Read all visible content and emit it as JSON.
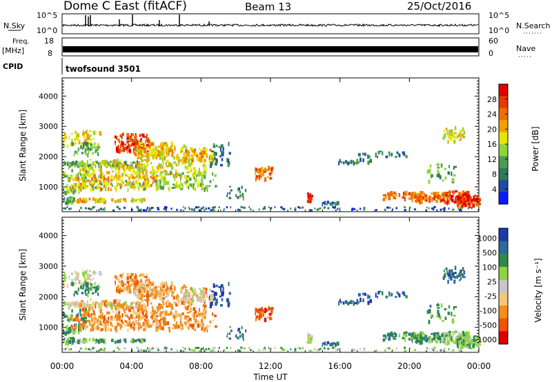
{
  "header": {
    "station": "Dome C East (fitACF)",
    "beam": "Beam 13",
    "date": "25/Oct/2016"
  },
  "status_panels": {
    "nsky_label": "N.Sky",
    "nsky_ticks": [
      "10^5",
      "10^0"
    ],
    "nsearch_label": "N.Search",
    "nsearch_ticks": [
      "10^5",
      "10^0"
    ],
    "freq_label": "Freq.",
    "freq_unit": "[MHz]",
    "freq_ticks": [
      "18",
      "8"
    ],
    "nave_label": "Nave",
    "nave_ticks": [
      "60",
      "0"
    ],
    "cpid_label": "CPID",
    "cpid_value": "twofsound 3501"
  },
  "colors": {
    "power": [
      "#0a1aff",
      "#1e4ca8",
      "#2e7b5a",
      "#4c9c50",
      "#8ed43c",
      "#e6e600",
      "#f0a000",
      "#ef6e00",
      "#e53b00",
      "#e00000"
    ],
    "velocity": [
      "#e00000",
      "#ef5500",
      "#f38f1a",
      "#f2c77a",
      "#c8c8c8",
      "#8ed43c",
      "#2e8b4a",
      "#2f6a9a",
      "#1e3ca8"
    ]
  },
  "chart_data": [
    {
      "type": "heatmap",
      "name": "power",
      "xlabel": "",
      "ylabel": "Slant Range [km]",
      "x_range_hours": [
        0,
        24
      ],
      "ylim": [
        180,
        4600
      ],
      "y_ticks": [
        "1000",
        "2000",
        "3000",
        "4000"
      ],
      "colorbar_label": "Power [dB]",
      "colorbar_ticks": [
        "4",
        "8",
        "12",
        "16",
        "20",
        "24",
        "28"
      ],
      "colorbar_range": [
        0,
        32
      ]
    },
    {
      "type": "heatmap",
      "name": "velocity",
      "xlabel": "Time UT",
      "ylabel": "Slant Range [km]",
      "x_range_hours": [
        0,
        24
      ],
      "x_ticks": [
        "00:00",
        "04:00",
        "08:00",
        "12:00",
        "16:00",
        "20:00",
        "00:00"
      ],
      "ylim": [
        180,
        4600
      ],
      "y_ticks": [
        "1000",
        "2000",
        "3000",
        "4000"
      ],
      "colorbar_label": "Velocity [m s⁻¹]",
      "colorbar_ticks": [
        "1000",
        "500",
        "100",
        "25",
        "-25",
        "-100",
        "-500",
        "-1000"
      ]
    }
  ]
}
